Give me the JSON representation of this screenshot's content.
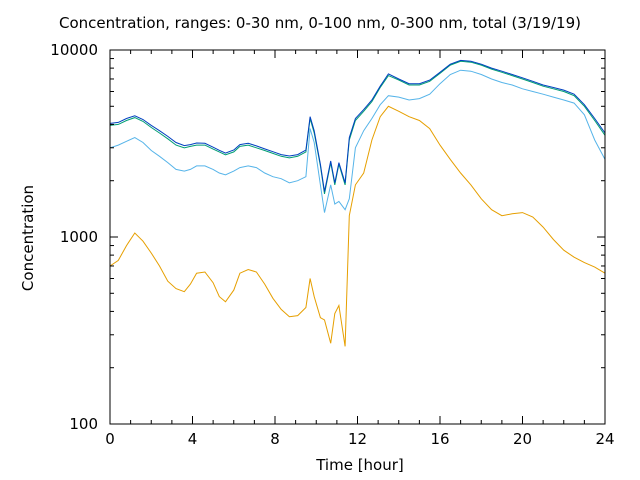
{
  "chart_data": {
    "type": "line",
    "title": "Concentration, ranges: 0-30 nm, 0-100 nm, 0-300 nm, total (3/19/19)",
    "xlabel": "Time [hour]",
    "ylabel": "Concentration",
    "xlim": [
      0,
      24
    ],
    "ylim": [
      100,
      10000
    ],
    "yscale": "log",
    "xticks": [
      0,
      4,
      8,
      12,
      16,
      20,
      24
    ],
    "yticks": [
      100,
      1000,
      10000
    ],
    "xtick_labels": [
      "0",
      "4",
      "8",
      "12",
      "16",
      "20",
      "24"
    ],
    "ytick_labels": [
      "100",
      "1000",
      "10000"
    ],
    "grid": false,
    "legend": "none",
    "series": [
      {
        "color": "#e69f00",
        "points": [
          [
            0,
            700
          ],
          [
            0.4,
            750
          ],
          [
            0.8,
            900
          ],
          [
            1.2,
            1050
          ],
          [
            1.6,
            950
          ],
          [
            2.0,
            820
          ],
          [
            2.4,
            700
          ],
          [
            2.8,
            580
          ],
          [
            3.2,
            530
          ],
          [
            3.6,
            510
          ],
          [
            3.9,
            560
          ],
          [
            4.2,
            640
          ],
          [
            4.6,
            650
          ],
          [
            5.0,
            570
          ],
          [
            5.3,
            480
          ],
          [
            5.6,
            450
          ],
          [
            6.0,
            520
          ],
          [
            6.3,
            640
          ],
          [
            6.7,
            670
          ],
          [
            7.1,
            650
          ],
          [
            7.5,
            560
          ],
          [
            7.9,
            470
          ],
          [
            8.3,
            410
          ],
          [
            8.7,
            375
          ],
          [
            9.1,
            380
          ],
          [
            9.5,
            420
          ],
          [
            9.7,
            600
          ],
          [
            9.9,
            480
          ],
          [
            10.2,
            370
          ],
          [
            10.4,
            360
          ],
          [
            10.7,
            270
          ],
          [
            10.9,
            390
          ],
          [
            11.1,
            430
          ],
          [
            11.4,
            260
          ],
          [
            11.6,
            1300
          ],
          [
            11.9,
            1900
          ],
          [
            12.3,
            2200
          ],
          [
            12.7,
            3300
          ],
          [
            13.1,
            4400
          ],
          [
            13.5,
            5000
          ],
          [
            14.0,
            4700
          ],
          [
            14.5,
            4400
          ],
          [
            15.0,
            4200
          ],
          [
            15.5,
            3800
          ],
          [
            16.0,
            3100
          ],
          [
            16.5,
            2600
          ],
          [
            17.0,
            2200
          ],
          [
            17.5,
            1900
          ],
          [
            18.0,
            1600
          ],
          [
            18.5,
            1400
          ],
          [
            19.0,
            1300
          ],
          [
            19.5,
            1330
          ],
          [
            20.0,
            1350
          ],
          [
            20.5,
            1280
          ],
          [
            21.0,
            1130
          ],
          [
            21.5,
            970
          ],
          [
            22.0,
            850
          ],
          [
            22.5,
            780
          ],
          [
            23.0,
            730
          ],
          [
            23.5,
            690
          ],
          [
            24.0,
            640
          ]
        ]
      },
      {
        "color": "#56b4e9",
        "points": [
          [
            0,
            3000
          ],
          [
            0.4,
            3100
          ],
          [
            0.8,
            3250
          ],
          [
            1.2,
            3400
          ],
          [
            1.6,
            3200
          ],
          [
            2.0,
            2900
          ],
          [
            2.4,
            2700
          ],
          [
            2.8,
            2500
          ],
          [
            3.2,
            2300
          ],
          [
            3.6,
            2250
          ],
          [
            3.9,
            2300
          ],
          [
            4.2,
            2400
          ],
          [
            4.6,
            2400
          ],
          [
            5.0,
            2300
          ],
          [
            5.3,
            2200
          ],
          [
            5.6,
            2150
          ],
          [
            6.0,
            2250
          ],
          [
            6.3,
            2350
          ],
          [
            6.7,
            2400
          ],
          [
            7.1,
            2350
          ],
          [
            7.5,
            2200
          ],
          [
            7.9,
            2100
          ],
          [
            8.3,
            2050
          ],
          [
            8.7,
            1950
          ],
          [
            9.1,
            2000
          ],
          [
            9.5,
            2100
          ],
          [
            9.7,
            3800
          ],
          [
            9.9,
            3200
          ],
          [
            10.2,
            1900
          ],
          [
            10.4,
            1350
          ],
          [
            10.7,
            1900
          ],
          [
            10.9,
            1500
          ],
          [
            11.1,
            1550
          ],
          [
            11.4,
            1400
          ],
          [
            11.6,
            1600
          ],
          [
            11.9,
            3000
          ],
          [
            12.3,
            3700
          ],
          [
            12.7,
            4300
          ],
          [
            13.1,
            5100
          ],
          [
            13.5,
            5700
          ],
          [
            14.0,
            5600
          ],
          [
            14.5,
            5400
          ],
          [
            15.0,
            5500
          ],
          [
            15.5,
            5800
          ],
          [
            16.0,
            6600
          ],
          [
            16.5,
            7400
          ],
          [
            17.0,
            7800
          ],
          [
            17.5,
            7700
          ],
          [
            18.0,
            7400
          ],
          [
            18.5,
            7000
          ],
          [
            19.0,
            6700
          ],
          [
            19.5,
            6500
          ],
          [
            20.0,
            6200
          ],
          [
            20.5,
            6000
          ],
          [
            21.0,
            5800
          ],
          [
            21.5,
            5600
          ],
          [
            22.0,
            5400
          ],
          [
            22.5,
            5200
          ],
          [
            23.0,
            4500
          ],
          [
            23.5,
            3300
          ],
          [
            24.0,
            2600
          ]
        ]
      },
      {
        "color": "#009e73",
        "points": [
          [
            0,
            3950
          ],
          [
            0.4,
            4000
          ],
          [
            0.8,
            4200
          ],
          [
            1.2,
            4350
          ],
          [
            1.6,
            4150
          ],
          [
            2.0,
            3850
          ],
          [
            2.4,
            3600
          ],
          [
            2.8,
            3350
          ],
          [
            3.2,
            3100
          ],
          [
            3.6,
            3000
          ],
          [
            3.9,
            3050
          ],
          [
            4.2,
            3100
          ],
          [
            4.6,
            3100
          ],
          [
            5.0,
            2950
          ],
          [
            5.3,
            2850
          ],
          [
            5.6,
            2750
          ],
          [
            6.0,
            2850
          ],
          [
            6.3,
            3050
          ],
          [
            6.7,
            3100
          ],
          [
            7.1,
            3000
          ],
          [
            7.5,
            2900
          ],
          [
            7.9,
            2800
          ],
          [
            8.3,
            2700
          ],
          [
            8.7,
            2650
          ],
          [
            9.1,
            2700
          ],
          [
            9.5,
            2850
          ],
          [
            9.7,
            4300
          ],
          [
            9.9,
            3600
          ],
          [
            10.2,
            2400
          ],
          [
            10.4,
            1700
          ],
          [
            10.7,
            2500
          ],
          [
            10.9,
            1900
          ],
          [
            11.1,
            2450
          ],
          [
            11.4,
            1900
          ],
          [
            11.6,
            3300
          ],
          [
            11.9,
            4200
          ],
          [
            12.3,
            4700
          ],
          [
            12.7,
            5300
          ],
          [
            13.1,
            6300
          ],
          [
            13.5,
            7300
          ],
          [
            14.0,
            6900
          ],
          [
            14.5,
            6500
          ],
          [
            15.0,
            6500
          ],
          [
            15.5,
            6800
          ],
          [
            16.0,
            7500
          ],
          [
            16.5,
            8300
          ],
          [
            17.0,
            8700
          ],
          [
            17.5,
            8600
          ],
          [
            18.0,
            8300
          ],
          [
            18.5,
            7900
          ],
          [
            19.0,
            7600
          ],
          [
            19.5,
            7300
          ],
          [
            20.0,
            7000
          ],
          [
            20.5,
            6700
          ],
          [
            21.0,
            6400
          ],
          [
            21.5,
            6200
          ],
          [
            22.0,
            6000
          ],
          [
            22.5,
            5700
          ],
          [
            23.0,
            5000
          ],
          [
            23.5,
            4200
          ],
          [
            24.0,
            3500
          ]
        ]
      },
      {
        "color": "#0040c0",
        "points": [
          [
            0,
            4050
          ],
          [
            0.4,
            4100
          ],
          [
            0.8,
            4300
          ],
          [
            1.2,
            4450
          ],
          [
            1.6,
            4250
          ],
          [
            2.0,
            3950
          ],
          [
            2.4,
            3700
          ],
          [
            2.8,
            3450
          ],
          [
            3.2,
            3200
          ],
          [
            3.6,
            3080
          ],
          [
            3.9,
            3120
          ],
          [
            4.2,
            3180
          ],
          [
            4.6,
            3170
          ],
          [
            5.0,
            3020
          ],
          [
            5.3,
            2910
          ],
          [
            5.6,
            2810
          ],
          [
            6.0,
            2920
          ],
          [
            6.3,
            3120
          ],
          [
            6.7,
            3170
          ],
          [
            7.1,
            3070
          ],
          [
            7.5,
            2960
          ],
          [
            7.9,
            2860
          ],
          [
            8.3,
            2760
          ],
          [
            8.7,
            2710
          ],
          [
            9.1,
            2760
          ],
          [
            9.5,
            2920
          ],
          [
            9.7,
            4400
          ],
          [
            9.9,
            3700
          ],
          [
            10.2,
            2450
          ],
          [
            10.4,
            1750
          ],
          [
            10.7,
            2550
          ],
          [
            10.9,
            1950
          ],
          [
            11.1,
            2500
          ],
          [
            11.4,
            1950
          ],
          [
            11.6,
            3400
          ],
          [
            11.9,
            4300
          ],
          [
            12.3,
            4800
          ],
          [
            12.7,
            5400
          ],
          [
            13.1,
            6400
          ],
          [
            13.5,
            7450
          ],
          [
            14.0,
            7000
          ],
          [
            14.5,
            6600
          ],
          [
            15.0,
            6600
          ],
          [
            15.5,
            6900
          ],
          [
            16.0,
            7600
          ],
          [
            16.5,
            8400
          ],
          [
            17.0,
            8800
          ],
          [
            17.5,
            8700
          ],
          [
            18.0,
            8400
          ],
          [
            18.5,
            8000
          ],
          [
            19.0,
            7700
          ],
          [
            19.5,
            7400
          ],
          [
            20.0,
            7100
          ],
          [
            20.5,
            6800
          ],
          [
            21.0,
            6500
          ],
          [
            21.5,
            6300
          ],
          [
            22.0,
            6100
          ],
          [
            22.5,
            5800
          ],
          [
            23.0,
            5100
          ],
          [
            23.5,
            4300
          ],
          [
            24.0,
            3600
          ]
        ]
      }
    ]
  }
}
